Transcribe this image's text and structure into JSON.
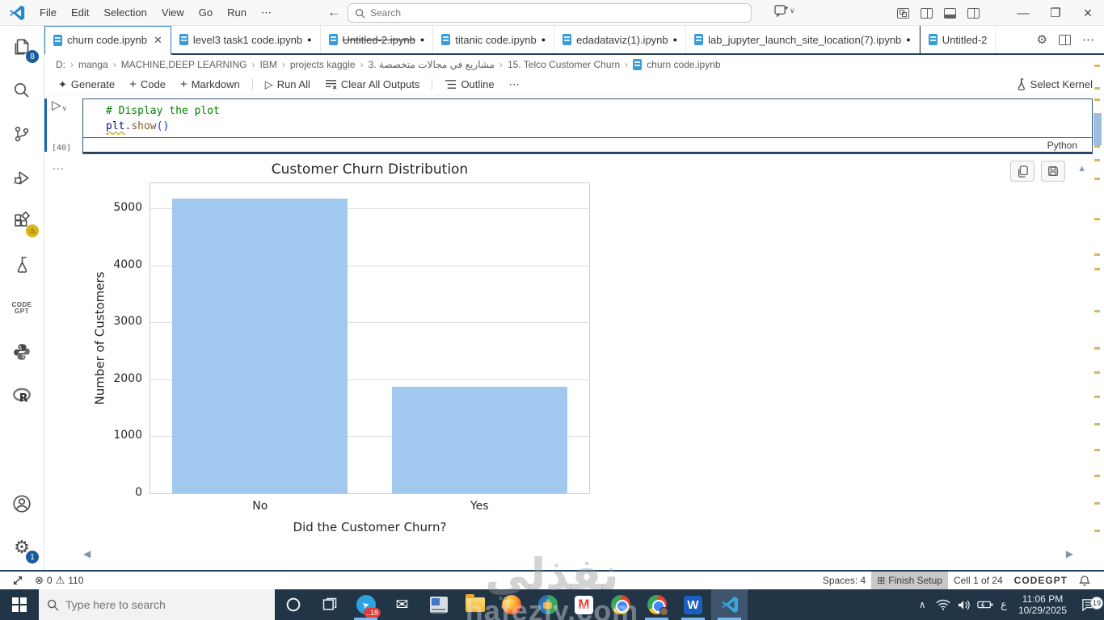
{
  "title_bar": {
    "menus": [
      "File",
      "Edit",
      "Selection",
      "View",
      "Go",
      "Run",
      "⋯"
    ],
    "search_placeholder": "Search"
  },
  "icons": {
    "back": "←",
    "forward": "→",
    "close": "✕",
    "dirty": "●",
    "more": "⋯",
    "run": "▷",
    "chevron_down": "∨",
    "plus": "+",
    "sparkle": "✦",
    "breadcrumb_sep": "›",
    "gear": "⚙",
    "error": "⊗",
    "warning": "⚠",
    "finish_setup": "⊞",
    "minimize": "—",
    "maximize": "❐",
    "win_close": "×",
    "tri_up": "▲",
    "arrow_left": "◀",
    "arrow_right": "▶",
    "tray_chevron": "∧",
    "mail": "✉",
    "out_more": "...",
    "telegram_plane": "➤"
  },
  "tabs": [
    {
      "label": "churn code.ipynb",
      "active": true
    },
    {
      "label": "level3 task1 code.ipynb",
      "dirty": true
    },
    {
      "label": "Untitled-2.ipynb",
      "dirty": true,
      "deleted": true
    },
    {
      "label": "titanic code.ipynb",
      "dirty": true
    },
    {
      "label": "edadataviz(1).ipynb",
      "dirty": true
    },
    {
      "label": "lab_jupyter_launch_site_location(7).ipynb",
      "dirty": true
    },
    {
      "label": "Untitled-2",
      "group": 2
    }
  ],
  "breadcrumb": {
    "items": [
      "D:",
      "manga",
      "MACHINE,DEEP LEARNING",
      "IBM",
      "projects kaggle",
      "3. مشاريع في مجالات متخصصة",
      "15. Telco Customer Churn",
      "churn code.ipynb"
    ]
  },
  "notebook_toolbar": {
    "generate": "Generate",
    "code": "Code",
    "markdown": "Markdown",
    "run_all": "Run All",
    "clear_all": "Clear All Outputs",
    "outline": "Outline",
    "select_kernel": "Select Kernel"
  },
  "code_cell": {
    "comment": "# Display the plot",
    "obj": "plt",
    "dot": ".",
    "func": "show",
    "parens": "()",
    "execution_count": "[40]",
    "language": "Python"
  },
  "chart_data": {
    "type": "bar",
    "title": "Customer Churn Distribution",
    "categories": [
      "No",
      "Yes"
    ],
    "values": [
      5174,
      1869
    ],
    "xlabel": "Did the Customer Churn?",
    "ylabel": "Number of Customers",
    "yticks": [
      0,
      1000,
      2000,
      3000,
      4000,
      5000
    ],
    "ylim": [
      0,
      5440
    ],
    "bar_color": "#a1c9f0",
    "grid": true,
    "legend": false
  },
  "status_bar": {
    "errors": "0",
    "warnings": "110",
    "spaces": "Spaces: 4",
    "finish_setup": "Finish Setup",
    "cell_info": "Cell 1 of 24",
    "brand": "CODEGPT"
  },
  "activity_bar": {
    "explorer_badge": "8",
    "settings_badge": "1",
    "codegpt_line1": "CODE",
    "codegpt_line2": "GPT",
    "r_label": "R"
  },
  "taskbar": {
    "search_placeholder": "Type here to search",
    "telegram_badge": "..18",
    "gmail_m": "M",
    "word_w": "W",
    "language": "ع",
    "time": "11:06 PM",
    "date": "10/29/2025",
    "notification_count": "19"
  },
  "watermark": {
    "line1": "نفذلي",
    "line2": "hafezly.com"
  }
}
